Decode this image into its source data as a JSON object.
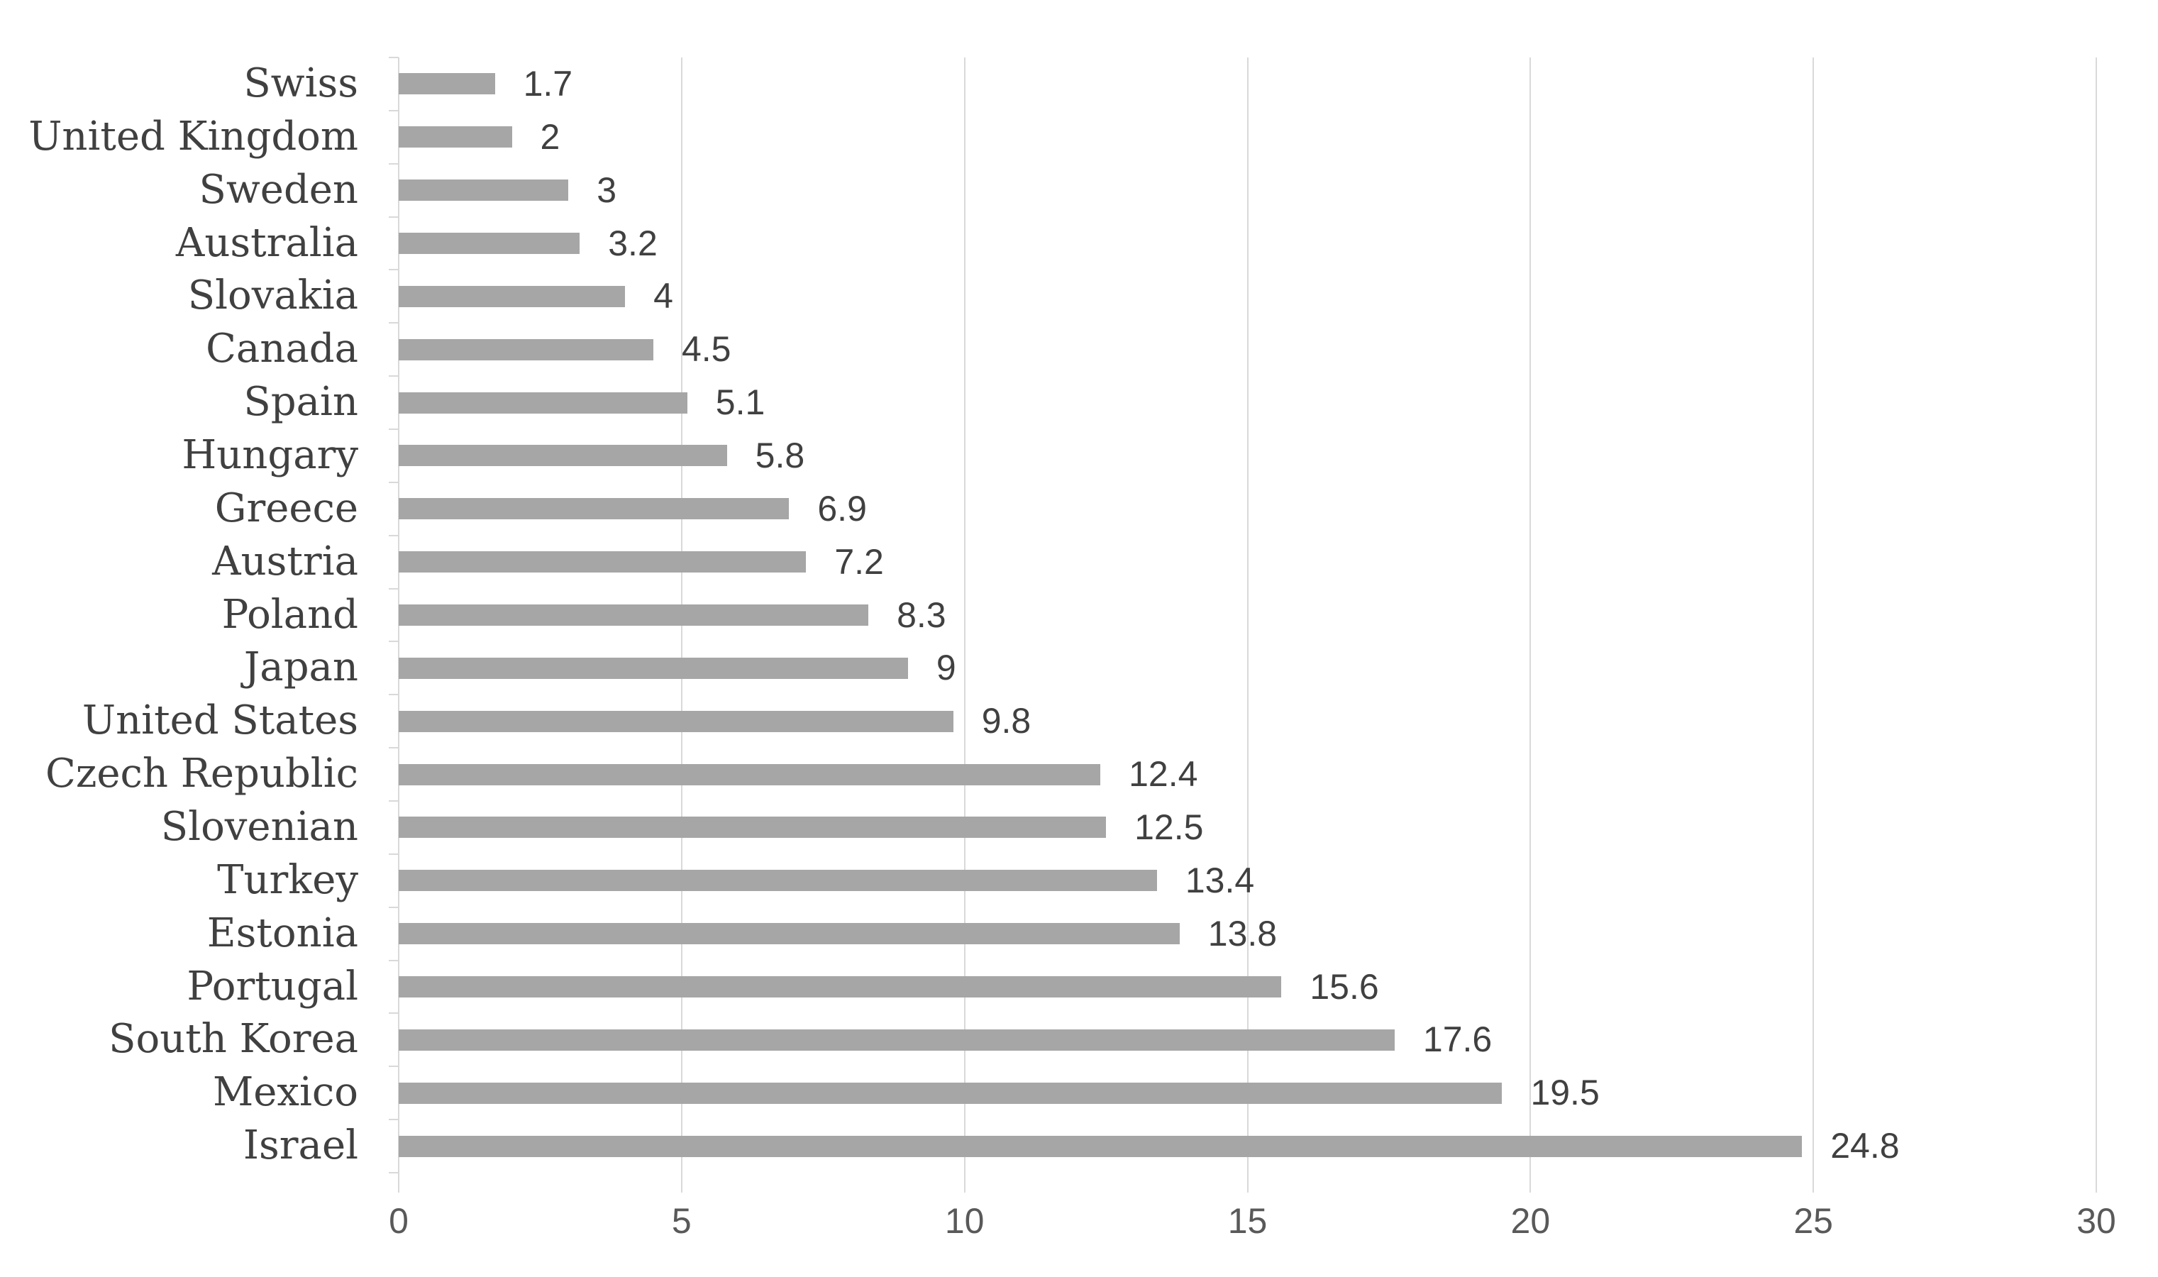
{
  "chart_data": {
    "type": "bar",
    "orientation": "horizontal",
    "title": "",
    "xlabel": "",
    "ylabel": "",
    "categories": [
      "Swiss",
      "United Kingdom",
      "Sweden",
      "Australia",
      "Slovakia",
      "Canada",
      "Spain",
      "Hungary",
      "Greece",
      "Austria",
      "Poland",
      "Japan",
      "United States",
      "Czech Republic",
      "Slovenian",
      "Turkey",
      "Estonia",
      "Portugal",
      "South Korea",
      "Mexico",
      "Israel"
    ],
    "values": [
      1.7,
      2,
      3,
      3.2,
      4,
      4.5,
      5.1,
      5.8,
      6.9,
      7.2,
      8.3,
      9,
      9.8,
      12.4,
      12.5,
      13.4,
      13.8,
      15.6,
      17.6,
      19.5,
      24.8
    ],
    "value_labels": [
      "1.7",
      "2",
      "3",
      "3.2",
      "4",
      "4.5",
      "5.1",
      "5.8",
      "6.9",
      "7.2",
      "8.3",
      "9",
      "9.8",
      "12.4",
      "12.5",
      "13.4",
      "13.8",
      "15.6",
      "17.6",
      "19.5",
      "24.8"
    ],
    "xlim": [
      0,
      30
    ],
    "xticks": [
      0,
      5,
      10,
      15,
      20,
      25,
      30
    ],
    "xtick_labels": [
      "0",
      "5",
      "10",
      "15",
      "20",
      "25",
      "30"
    ],
    "grid": "vertical-gridlines-on",
    "legend": "none",
    "data_labels": "outside-end",
    "bar_color": "#a6a6a6",
    "gridline_color": "#d9d9d9",
    "data_label_color": "#404040",
    "category_label_color": "#404040",
    "tick_label_color": "#595959",
    "background_color": "#ffffff"
  }
}
